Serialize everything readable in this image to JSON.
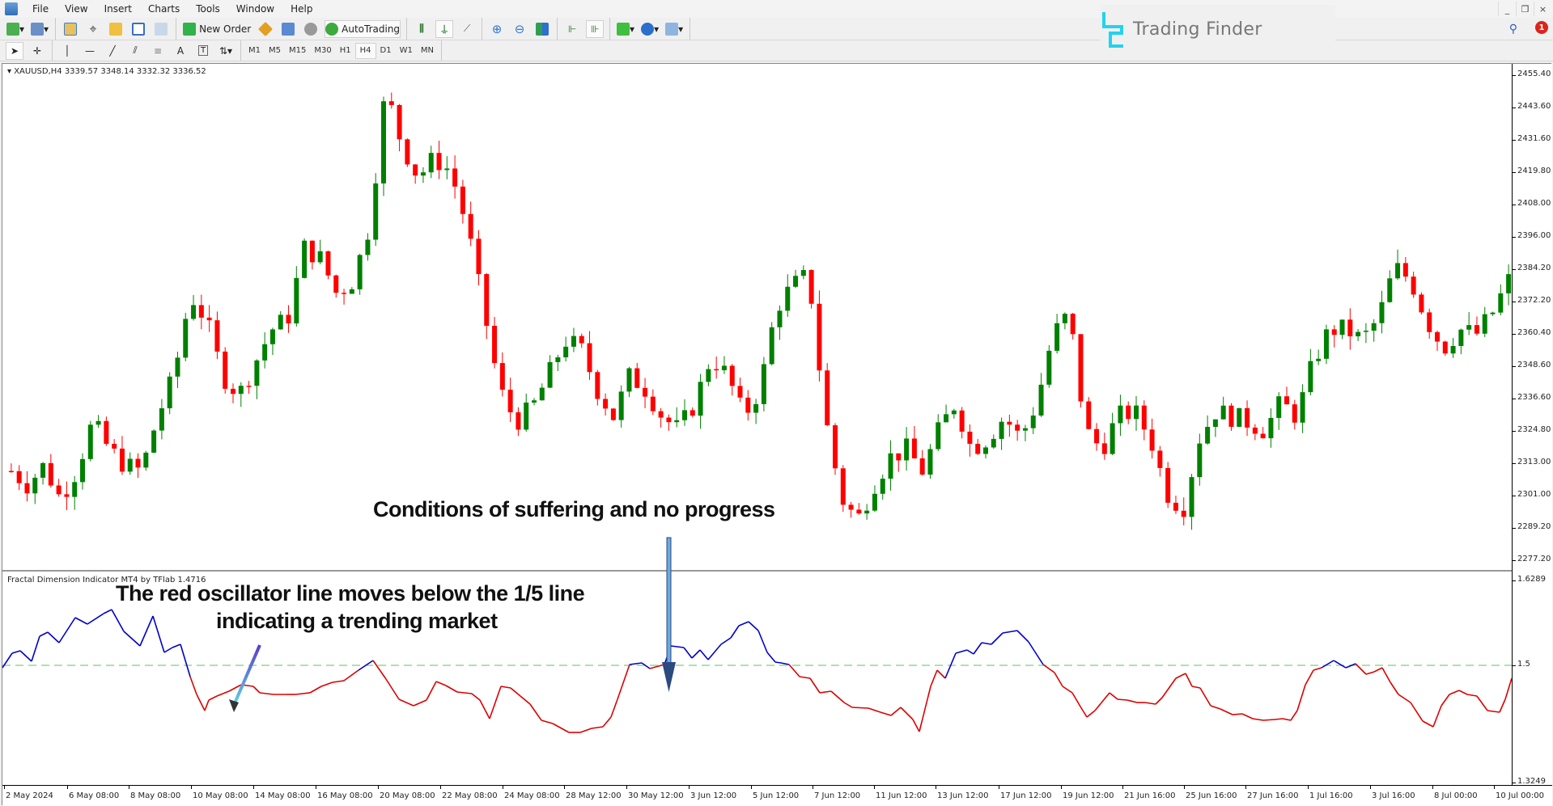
{
  "menu": {
    "items": [
      "File",
      "View",
      "Insert",
      "Charts",
      "Tools",
      "Window",
      "Help"
    ]
  },
  "toolbar": {
    "new_order_label": "New Order",
    "autotrading_label": "AutoTrading",
    "timeframes": [
      "M1",
      "M5",
      "M15",
      "M30",
      "H1",
      "H4",
      "D1",
      "W1",
      "MN"
    ],
    "active_timeframe": "H4"
  },
  "branding": {
    "logo_text": "Trading Finder",
    "accent": "#22d3ee"
  },
  "window_controls": {
    "minimize": "_",
    "restore": "❐",
    "close": "×"
  },
  "notifications": {
    "count": "1"
  },
  "chart": {
    "symbol_line": "XAUUSD,H4  3339.57 3348.14 3332.32 3336.52",
    "price_axis": [
      "2455.40",
      "2443.60",
      "2431.60",
      "2419.80",
      "2408.00",
      "2396.00",
      "2384.20",
      "2372.20",
      "2360.40",
      "2348.60",
      "2336.60",
      "2324.80",
      "2313.00",
      "2301.00",
      "2289.20",
      "2277.20"
    ],
    "bull_color": "#008000",
    "bear_color": "#ff0000"
  },
  "indicator": {
    "label": "Fractal Dimension Indicator MT4 by TFlab 1.4716",
    "axis": [
      "1.6289",
      "1.5",
      "1.3249"
    ],
    "level": "1.5",
    "above_color": "#0000cc",
    "below_color": "#dd0000",
    "level_color": "#90d890"
  },
  "time_axis": [
    "2 May 2024",
    "6 May 08:00",
    "8 May 08:00",
    "10 May 08:00",
    "14 May 08:00",
    "16 May 08:00",
    "20 May 08:00",
    "22 May 08:00",
    "24 May 08:00",
    "28 May 12:00",
    "30 May 12:00",
    "3 Jun 12:00",
    "5 Jun 12:00",
    "7 Jun 12:00",
    "11 Jun 12:00",
    "13 Jun 12:00",
    "17 Jun 12:00",
    "19 Jun 12:00",
    "21 Jun 16:00",
    "25 Jun 16:00",
    "27 Jun 16:00",
    "1 Jul 16:00",
    "3 Jul 16:00",
    "8 Jul 00:00",
    "10 Jul 00:00"
  ],
  "annotations": {
    "suffering": "Conditions of suffering and no progress",
    "trending_line1": "The red oscillator line moves below the 1/5 line",
    "trending_line2": "indicating a trending market"
  },
  "chart_data": {
    "type": "candlestick",
    "title": "XAUUSD,H4",
    "ylim": [
      2277.2,
      2455.4
    ],
    "close_path_approx": [
      2310,
      2305,
      2312,
      2300,
      2310,
      2328,
      2318,
      2312,
      2310,
      2330,
      2345,
      2375,
      2365,
      2345,
      2338,
      2350,
      2362,
      2366,
      2392,
      2388,
      2375,
      2380,
      2400,
      2450,
      2430,
      2418,
      2425,
      2420,
      2400,
      2370,
      2340,
      2328,
      2333,
      2345,
      2358,
      2355,
      2340,
      2330,
      2345,
      2340,
      2330,
      2325,
      2335,
      2352,
      2345,
      2330,
      2340,
      2370,
      2378,
      2382,
      2330,
      2300,
      2292,
      2305,
      2315,
      2318,
      2310,
      2325,
      2335,
      2318,
      2322,
      2330,
      2322,
      2335,
      2360,
      2368,
      2325,
      2318,
      2330,
      2332,
      2322,
      2302,
      2296,
      2322,
      2332,
      2330,
      2328,
      2325,
      2335,
      2330,
      2350,
      2362,
      2362,
      2358,
      2366,
      2385,
      2380,
      2365,
      2355,
      2362,
      2360,
      2368,
      2380
    ],
    "indicator_series": {
      "name": "Fractal Dimension",
      "level": 1.5,
      "range": [
        1.3249,
        1.6289
      ]
    }
  }
}
